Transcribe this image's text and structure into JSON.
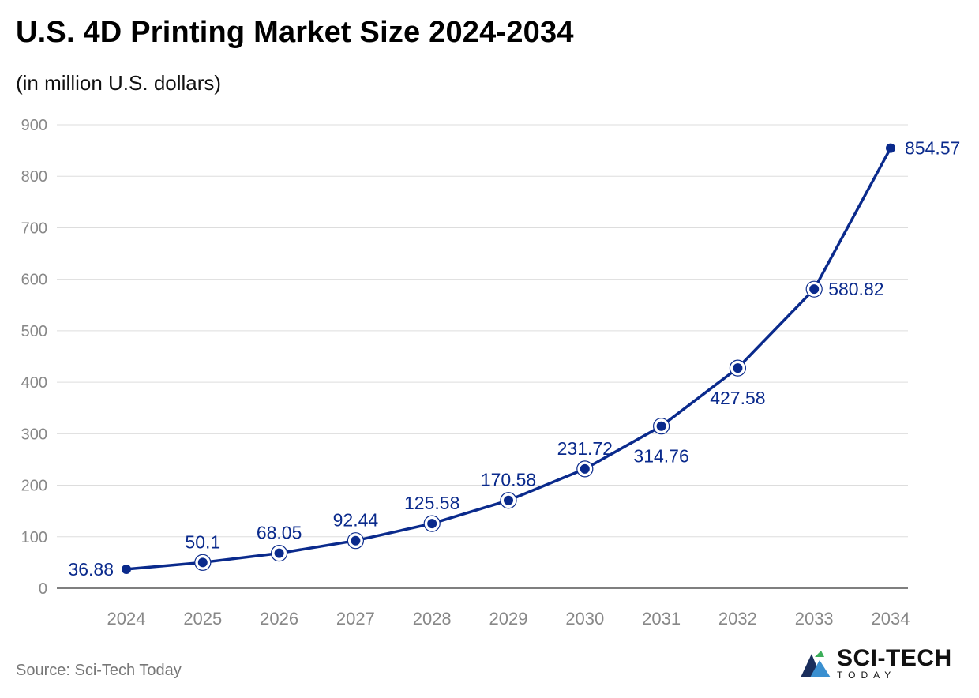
{
  "title": "U.S. 4D Printing Market Size 2024-2034",
  "subtitle": "(in million U.S. dollars)",
  "source": "Source: Sci-Tech Today",
  "logo": {
    "name": "SCI-TECH",
    "tagline": "TODAY",
    "icon": "mountain-logo-icon"
  },
  "colors": {
    "line": "#0a2a8c",
    "label": "#0a2a8c",
    "grid": "#dddddd",
    "axis_text": "#888888"
  },
  "chart_data": {
    "type": "line",
    "title": "U.S. 4D Printing Market Size 2024-2034",
    "subtitle": "(in million U.S. dollars)",
    "xlabel": "",
    "ylabel": "",
    "categories": [
      "2024",
      "2025",
      "2026",
      "2027",
      "2028",
      "2029",
      "2030",
      "2031",
      "2032",
      "2033",
      "2034"
    ],
    "values": [
      36.88,
      50.1,
      68.05,
      92.44,
      125.58,
      170.58,
      231.72,
      314.76,
      427.58,
      580.82,
      854.57
    ],
    "data_labels": [
      "36.88",
      "50.1",
      "68.05",
      "92.44",
      "125.58",
      "170.58",
      "231.72",
      "314.76",
      "427.58",
      "580.82",
      "854.57"
    ],
    "label_positions": [
      "left",
      "above",
      "above",
      "above",
      "above",
      "above",
      "above",
      "below",
      "below",
      "right",
      "right"
    ],
    "ylim": [
      0,
      900
    ],
    "yticks": [
      0,
      100,
      200,
      300,
      400,
      500,
      600,
      700,
      800,
      900
    ],
    "grid": true,
    "legend": "none"
  }
}
